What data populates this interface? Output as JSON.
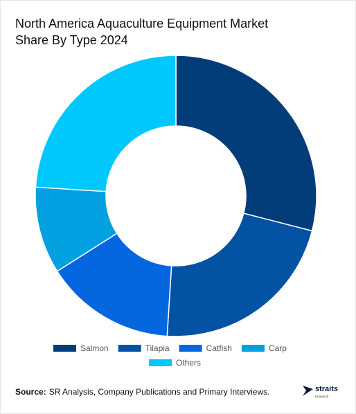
{
  "chart_data": {
    "type": "donut",
    "title": [
      "North America Aquaculture Equipment Market",
      "Share By Type 2024"
    ],
    "categories": [
      "Salmon",
      "Tilapia",
      "Catfish",
      "Carp",
      "Others"
    ],
    "values": [
      29,
      22,
      15,
      10,
      24
    ],
    "colors": [
      "#023d7a",
      "#0352a3",
      "#0567e0",
      "#03a1e1",
      "#00c8fc"
    ],
    "legend": "bottom"
  },
  "footer": {
    "source_label": "Source:",
    "source_text": "SR Analysis, Company Publications and Primary Interviews.",
    "logo": "straits",
    "logo_sub": "research"
  }
}
